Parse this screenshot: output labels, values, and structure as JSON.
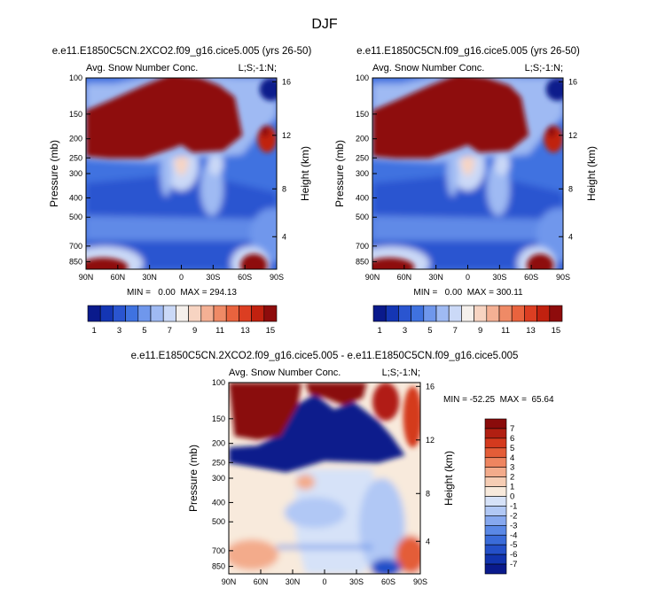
{
  "page_title": "DJF",
  "panels": [
    {
      "title": "e.e11.E1850C5CN.2XCO2.f09_g16.cice5.005 (yrs 26-50)",
      "subtitle_left": "Avg. Snow Number Conc.",
      "subtitle_right": "L;S;-1:N;",
      "stats": "MIN =   0.00  MAX = 294.13"
    },
    {
      "title": "e.e11.E1850C5CN.f09_g16.cice5.005 (yrs 26-50)",
      "subtitle_left": "Avg. Snow Number Conc.",
      "subtitle_right": "L;S;-1:N;",
      "stats": "MIN =   0.00  MAX = 300.11"
    },
    {
      "title": "e.e11.E1850C5CN.2XCO2.f09_g16.cice5.005 - e.e11.E1850C5CN.f09_g16.cice5.005",
      "subtitle_left": "Avg. Snow Number Conc.",
      "subtitle_right": "L;S;-1:N;",
      "stats": "MIN = -52.25  MAX =  65.64"
    }
  ],
  "colors": {
    "abs_scale": [
      "#0a1a8c",
      "#1436b4",
      "#2a55d0",
      "#3f72e0",
      "#6f97ec",
      "#9fbaf3",
      "#cbd9f7",
      "#f5f0ec",
      "#f7d4c2",
      "#f4b094",
      "#ef8a66",
      "#e9633e",
      "#dc3e22",
      "#c1210f",
      "#8e0c0c"
    ],
    "diff_scale": [
      "#0a1a8c",
      "#1234ae",
      "#2450c8",
      "#3a6bd9",
      "#5a88e6",
      "#86a8ef",
      "#b1c8f5",
      "#d6e2f8",
      "#f8eadc",
      "#f6cdb4",
      "#f3ab8b",
      "#ee8560",
      "#e45d38",
      "#d43a1e",
      "#b11f12",
      "#8a0b0b"
    ]
  },
  "chart_data": [
    {
      "type": "heatmap",
      "title": "e.e11.E1850C5CN.2XCO2.f09_g16.cice5.005 (yrs 26-50)",
      "xlabel": "",
      "ylabel": "Pressure (mb)",
      "y2label": "Height (km)",
      "x_ticks": [
        "90N",
        "60N",
        "30N",
        "0",
        "30S",
        "60S",
        "90S"
      ],
      "y_ticks": [
        "100",
        "150",
        "200",
        "250",
        "300",
        "400",
        "500",
        "700",
        "850"
      ],
      "y2_ticks": [
        "16",
        "12",
        "8",
        "4"
      ],
      "colorbar_labels": [
        "1",
        "3",
        "5",
        "7",
        "9",
        "11",
        "13",
        "15"
      ],
      "min": 0.0,
      "max": 294.13
    },
    {
      "type": "heatmap",
      "title": "e.e11.E1850C5CN.f09_g16.cice5.005 (yrs 26-50)",
      "xlabel": "",
      "ylabel": "Pressure (mb)",
      "y2label": "Height (km)",
      "x_ticks": [
        "90N",
        "60N",
        "30N",
        "0",
        "30S",
        "60S",
        "90S"
      ],
      "y_ticks": [
        "100",
        "150",
        "200",
        "250",
        "300",
        "400",
        "500",
        "700",
        "850"
      ],
      "y2_ticks": [
        "16",
        "12",
        "8",
        "4"
      ],
      "colorbar_labels": [
        "1",
        "3",
        "5",
        "7",
        "9",
        "11",
        "13",
        "15"
      ],
      "min": 0.0,
      "max": 300.11
    },
    {
      "type": "heatmap",
      "title": "e.e11.E1850C5CN.2XCO2.f09_g16.cice5.005 - e.e11.E1850C5CN.f09_g16.cice5.005",
      "xlabel": "",
      "ylabel": "Pressure (mb)",
      "y2label": "Height (km)",
      "x_ticks": [
        "90N",
        "60N",
        "30N",
        "0",
        "30S",
        "60S",
        "90S"
      ],
      "y_ticks": [
        "100",
        "150",
        "200",
        "250",
        "300",
        "400",
        "500",
        "700",
        "850"
      ],
      "y2_ticks": [
        "16",
        "12",
        "8",
        "4"
      ],
      "colorbar_labels": [
        "7",
        "6",
        "5",
        "4",
        "3",
        "2",
        "1",
        "0",
        "-1",
        "-2",
        "-3",
        "-4",
        "-5",
        "-6",
        "-7"
      ],
      "min": -52.25,
      "max": 65.64
    }
  ]
}
